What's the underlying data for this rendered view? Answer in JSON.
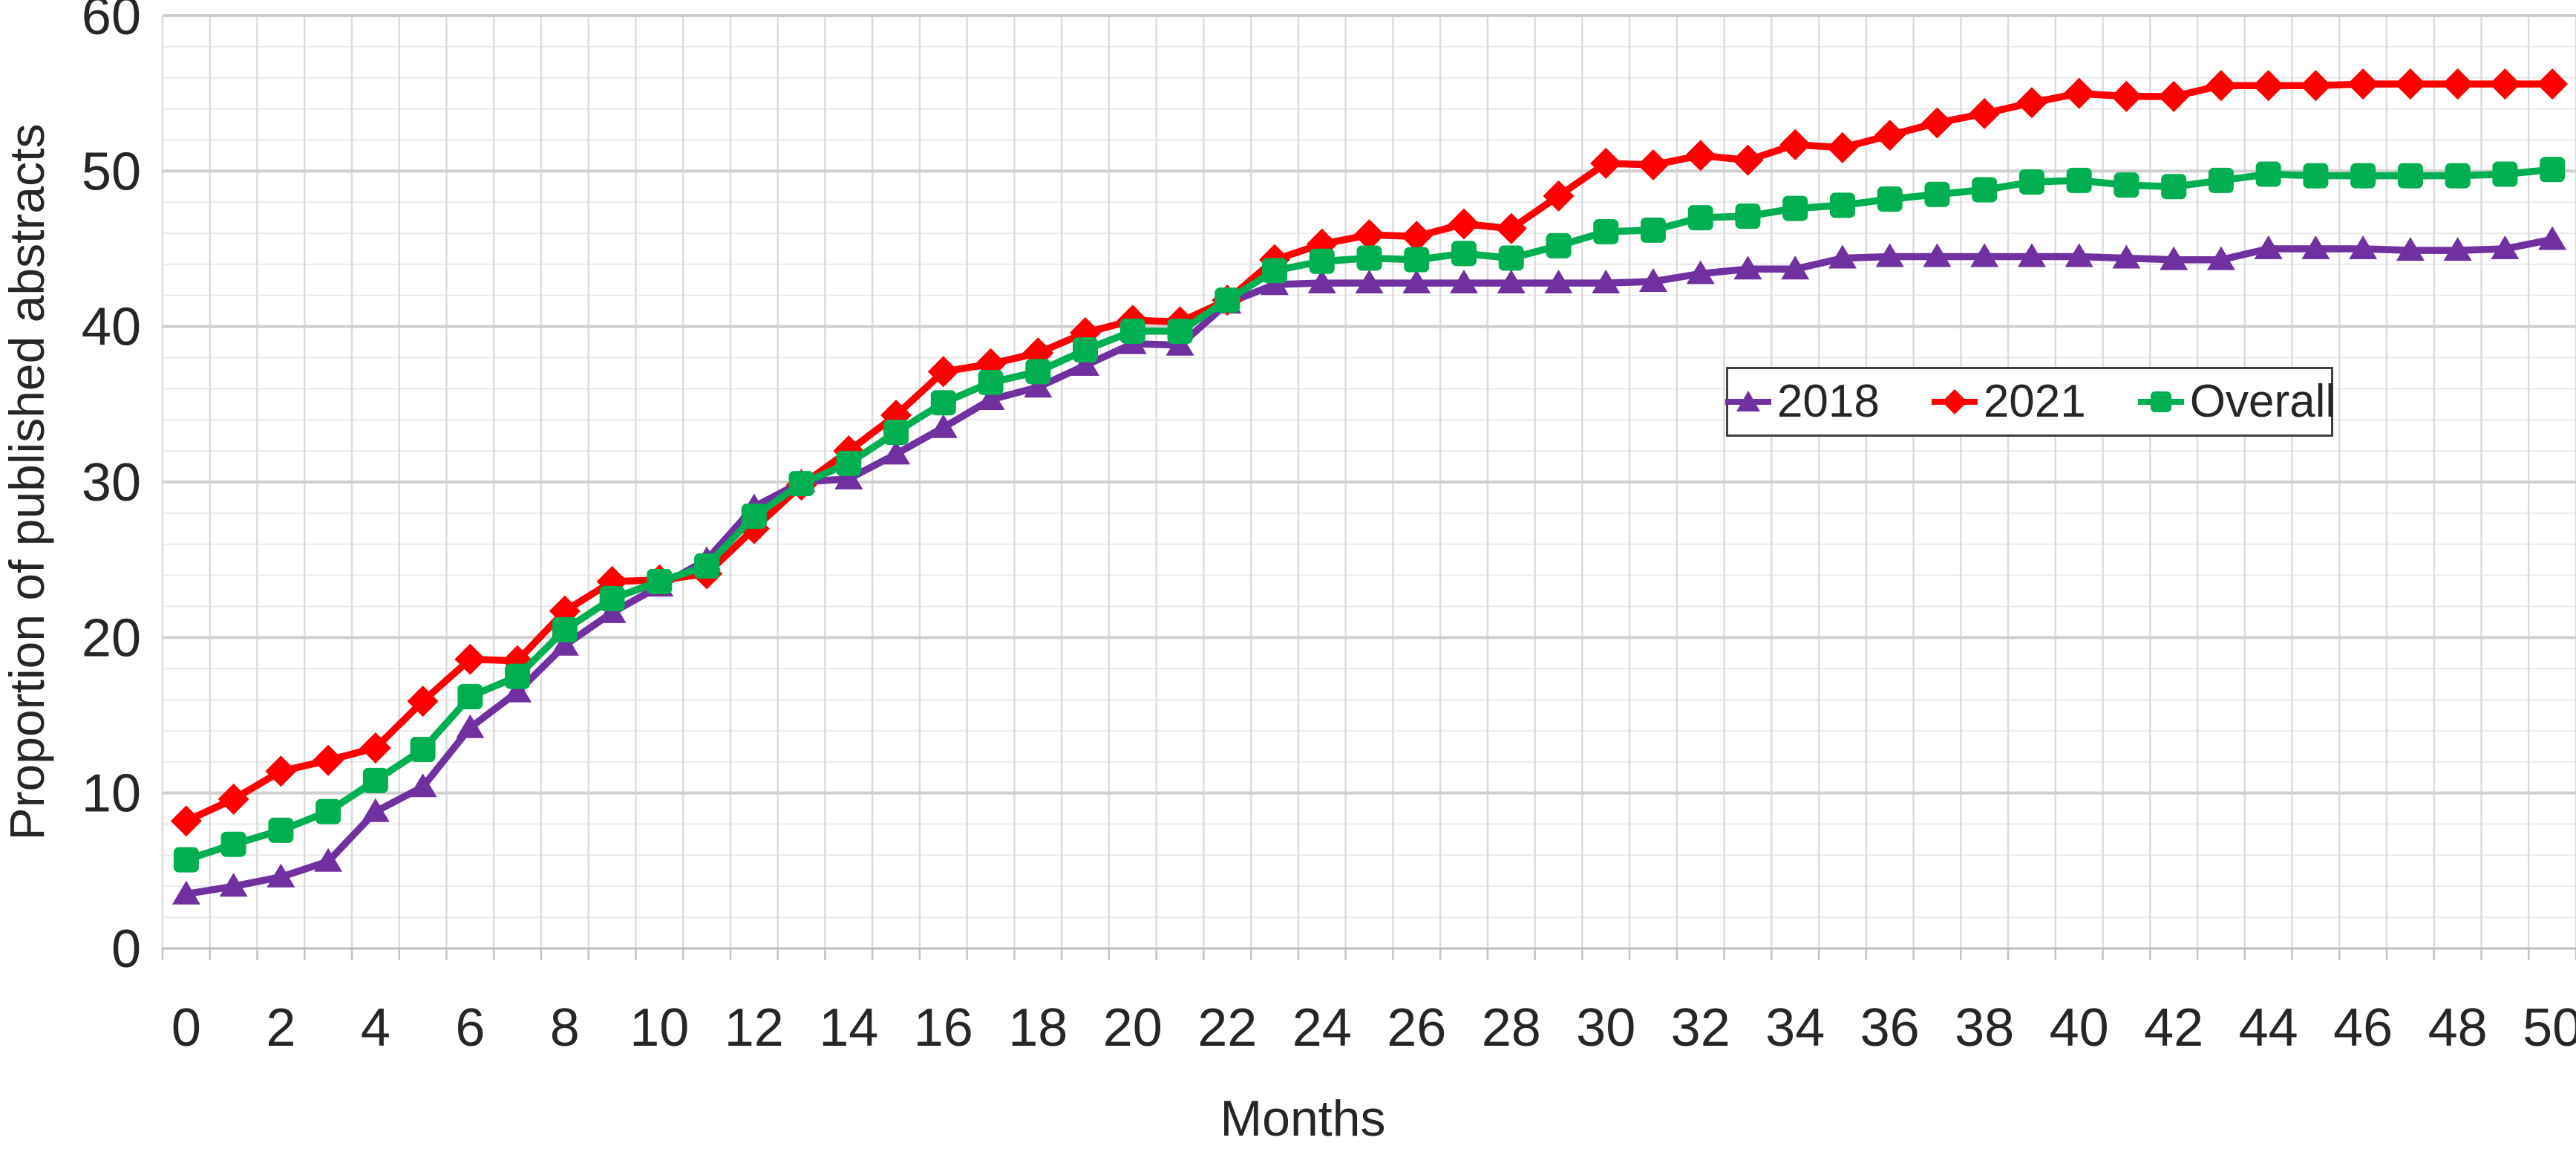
{
  "figure": {
    "background": "#ffffff",
    "y_axis_title": "Proportion of published abstracts",
    "x_axis_title": "Months"
  },
  "chart_data": {
    "type": "line",
    "title": "",
    "xlabel": "Months",
    "ylabel": "Proportion of published abstracts",
    "xlim": [
      0,
      50
    ],
    "ylim": [
      0,
      60
    ],
    "x_ticks": [
      0,
      2,
      4,
      6,
      8,
      10,
      12,
      14,
      16,
      18,
      20,
      22,
      24,
      26,
      28,
      30,
      32,
      34,
      36,
      38,
      40,
      42,
      44,
      46,
      48,
      50
    ],
    "y_ticks": [
      0,
      10,
      20,
      30,
      40,
      50,
      60
    ],
    "grid": {
      "vertical_step_months": 1,
      "horizontal_minor_step": 2,
      "horizontal_major_step": 10,
      "grid_on": true
    },
    "legend_position": "inside-right",
    "x": [
      0,
      1,
      2,
      3,
      4,
      5,
      6,
      7,
      8,
      9,
      10,
      11,
      12,
      13,
      14,
      15,
      16,
      17,
      18,
      19,
      20,
      21,
      22,
      23,
      24,
      25,
      26,
      27,
      28,
      29,
      30,
      31,
      32,
      33,
      34,
      35,
      36,
      37,
      38,
      39,
      40,
      41,
      42,
      43,
      44,
      45,
      46,
      47,
      48,
      49,
      50
    ],
    "series": [
      {
        "name": "2018",
        "color": "#7030A0",
        "marker": "triangle",
        "values": [
          3.5,
          4.0,
          4.6,
          5.6,
          8.8,
          10.4,
          14.2,
          16.5,
          19.5,
          21.6,
          23.3,
          25.0,
          28.4,
          30.0,
          30.2,
          31.8,
          33.5,
          35.3,
          36.1,
          37.5,
          38.9,
          38.8,
          41.5,
          42.7,
          42.8,
          42.8,
          42.8,
          42.8,
          42.8,
          42.8,
          42.8,
          42.9,
          43.4,
          43.7,
          43.7,
          44.4,
          44.5,
          44.5,
          44.5,
          44.5,
          44.5,
          44.4,
          44.3,
          44.3,
          45.0,
          45.0,
          45.0,
          44.9,
          44.9,
          45.0,
          45.6
        ]
      },
      {
        "name": "2021",
        "color": "#FF0000",
        "marker": "diamond",
        "values": [
          8.2,
          9.6,
          11.4,
          12.1,
          12.9,
          15.9,
          18.6,
          18.5,
          21.7,
          23.6,
          23.7,
          24.1,
          27.0,
          29.8,
          32.0,
          34.3,
          37.1,
          37.6,
          38.3,
          39.6,
          40.4,
          40.3,
          41.7,
          44.3,
          45.3,
          45.9,
          45.8,
          46.6,
          46.3,
          48.4,
          50.5,
          50.4,
          51.0,
          50.7,
          51.7,
          51.5,
          52.3,
          53.1,
          53.7,
          54.4,
          55.0,
          54.8,
          54.8,
          55.5,
          55.5,
          55.5,
          55.6,
          55.6,
          55.6,
          55.6,
          55.6
        ]
      },
      {
        "name": "Overall",
        "color": "#00B050",
        "marker": "square",
        "values": [
          5.7,
          6.7,
          7.6,
          8.8,
          10.8,
          12.8,
          16.2,
          17.5,
          20.5,
          22.5,
          23.6,
          24.6,
          27.8,
          29.9,
          31.2,
          33.2,
          35.1,
          36.4,
          37.1,
          38.5,
          39.7,
          39.7,
          41.7,
          43.6,
          44.2,
          44.4,
          44.3,
          44.7,
          44.4,
          45.2,
          46.1,
          46.2,
          47.0,
          47.1,
          47.6,
          47.8,
          48.2,
          48.5,
          48.8,
          49.3,
          49.4,
          49.1,
          49.0,
          49.4,
          49.8,
          49.7,
          49.7,
          49.7,
          49.7,
          49.8,
          50.1
        ]
      }
    ]
  }
}
